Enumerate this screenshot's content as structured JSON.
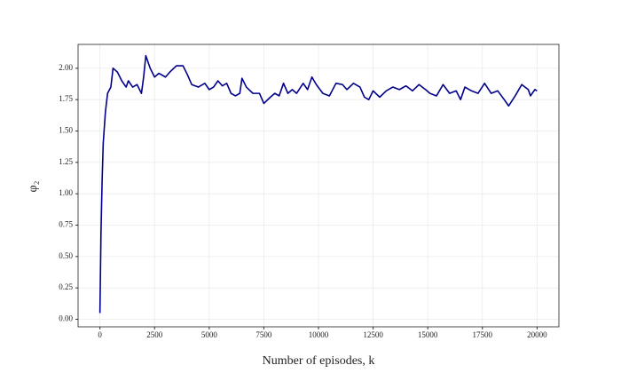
{
  "chart_data": {
    "type": "line",
    "x_label": "Number of episodes, k",
    "y_label": "φ₂",
    "xlim": [
      -1000,
      21000
    ],
    "ylim": [
      -0.06,
      2.19
    ],
    "xticks": [
      0,
      2500,
      5000,
      7500,
      10000,
      12500,
      15000,
      17500,
      20000
    ],
    "yticks": [
      {
        "value": 0,
        "label": "0.00"
      },
      0.25,
      {
        "value": 0.5,
        "label": "0.50"
      },
      0.75,
      {
        "value": 1,
        "label": "1.00"
      },
      1.25,
      {
        "value": 1.5,
        "label": "1.50"
      },
      1.75,
      {
        "value": 2,
        "label": "2.00"
      }
    ],
    "grid": true,
    "x": [
      0,
      50,
      100,
      150,
      250,
      350,
      500,
      600,
      800,
      1000,
      1200,
      1300,
      1500,
      1700,
      1900,
      2000,
      2100,
      2300,
      2500,
      2700,
      3000,
      3200,
      3500,
      3800,
      4000,
      4200,
      4500,
      4800,
      5000,
      5200,
      5400,
      5600,
      5800,
      6000,
      6200,
      6400,
      6500,
      6700,
      7000,
      7300,
      7500,
      7800,
      8000,
      8200,
      8400,
      8600,
      8800,
      9000,
      9300,
      9500,
      9700,
      9900,
      10200,
      10500,
      10800,
      11100,
      11300,
      11600,
      11900,
      12100,
      12300,
      12500,
      12800,
      13100,
      13400,
      13700,
      14000,
      14300,
      14600,
      14900,
      15100,
      15400,
      15700,
      16000,
      16300,
      16500,
      16700,
      17000,
      17300,
      17600,
      17900,
      18200,
      18500,
      18700,
      19000,
      19300,
      19600,
      19700,
      19900,
      20000
    ],
    "series": [
      {
        "color": "#00008b",
        "values": [
          0.05,
          0.7,
          1.1,
          1.4,
          1.65,
          1.8,
          1.85,
          2.0,
          1.97,
          1.9,
          1.85,
          1.9,
          1.85,
          1.87,
          1.8,
          1.93,
          2.1,
          2.0,
          1.93,
          1.96,
          1.93,
          1.97,
          2.02,
          2.02,
          1.95,
          1.87,
          1.85,
          1.88,
          1.83,
          1.85,
          1.9,
          1.86,
          1.88,
          1.8,
          1.78,
          1.8,
          1.92,
          1.85,
          1.8,
          1.8,
          1.72,
          1.77,
          1.8,
          1.78,
          1.88,
          1.8,
          1.83,
          1.8,
          1.88,
          1.83,
          1.93,
          1.87,
          1.8,
          1.78,
          1.88,
          1.87,
          1.83,
          1.88,
          1.85,
          1.77,
          1.75,
          1.82,
          1.77,
          1.82,
          1.85,
          1.83,
          1.86,
          1.82,
          1.87,
          1.83,
          1.8,
          1.78,
          1.87,
          1.8,
          1.82,
          1.75,
          1.85,
          1.82,
          1.8,
          1.88,
          1.8,
          1.82,
          1.75,
          1.7,
          1.78,
          1.87,
          1.83,
          1.78,
          1.83,
          1.82
        ]
      }
    ]
  }
}
